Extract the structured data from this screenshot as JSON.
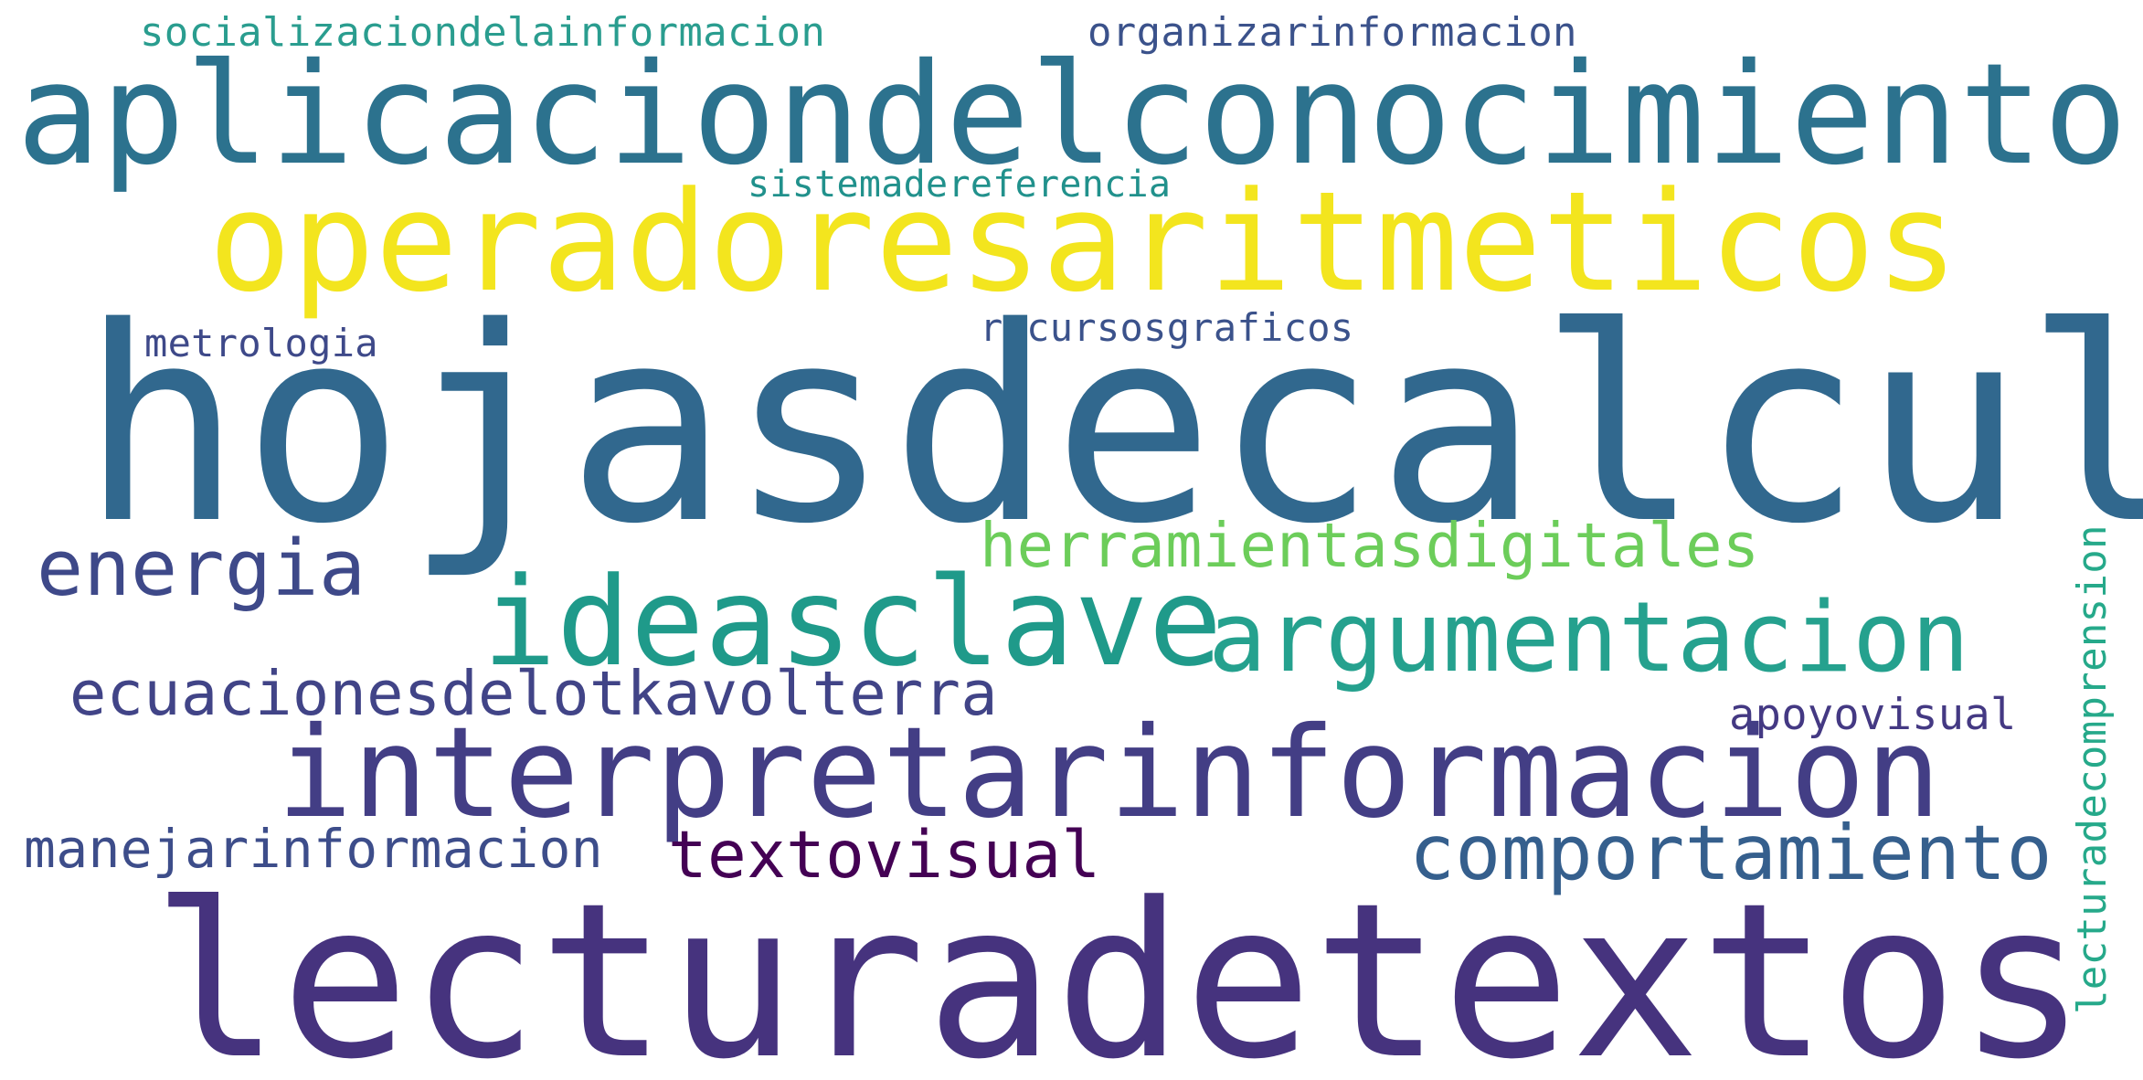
{
  "cloud": {
    "words": [
      {
        "id": "w-socializacion",
        "text": "socializaciondelainformacion",
        "color": "#2a9d8f"
      },
      {
        "id": "w-organizar",
        "text": "organizarinformacion",
        "color": "#3b528b"
      },
      {
        "id": "w-aplicacion",
        "text": "aplicaciondelconocimiento",
        "color": "#2c728e"
      },
      {
        "id": "w-sistema",
        "text": "sistemadereferencia",
        "color": "#21918c"
      },
      {
        "id": "w-operadores",
        "text": "operadoresaritmeticos",
        "color": "#f3e51e"
      },
      {
        "id": "w-metrologia",
        "text": "metrologia",
        "color": "#3e4989"
      },
      {
        "id": "w-recursos",
        "text": "recursosgraficos",
        "color": "#3b528b"
      },
      {
        "id": "w-hojas",
        "text": "hojasdecalculo",
        "color": "#31688e"
      },
      {
        "id": "w-herramientas",
        "text": "herramientasdigitales",
        "color": "#6ccd5a"
      },
      {
        "id": "w-energia",
        "text": "energia",
        "color": "#3e4989"
      },
      {
        "id": "w-ideasclave",
        "text": "ideasclave",
        "color": "#1f9a8a"
      },
      {
        "id": "w-argumentacion",
        "text": "argumentacion",
        "color": "#25a18e"
      },
      {
        "id": "w-ecuaciones",
        "text": "ecuacionesdelotkavolterra",
        "color": "#414487"
      },
      {
        "id": "w-apoyovisual",
        "text": "apoyovisual",
        "color": "#443983"
      },
      {
        "id": "w-interpretar",
        "text": "interpretarinformacion",
        "color": "#433e85"
      },
      {
        "id": "w-comportamiento",
        "text": "comportamiento",
        "color": "#355f8d"
      },
      {
        "id": "w-manejar",
        "text": "manejarinformacion",
        "color": "#3d4d8a"
      },
      {
        "id": "w-textovisual",
        "text": "textovisual",
        "color": "#440154"
      },
      {
        "id": "w-lecturadetextos",
        "text": "lecturadetextos",
        "color": "#46337e"
      },
      {
        "id": "w-lecturacomp",
        "text": "lecturadecomprension",
        "color": "#26a98a"
      }
    ]
  }
}
